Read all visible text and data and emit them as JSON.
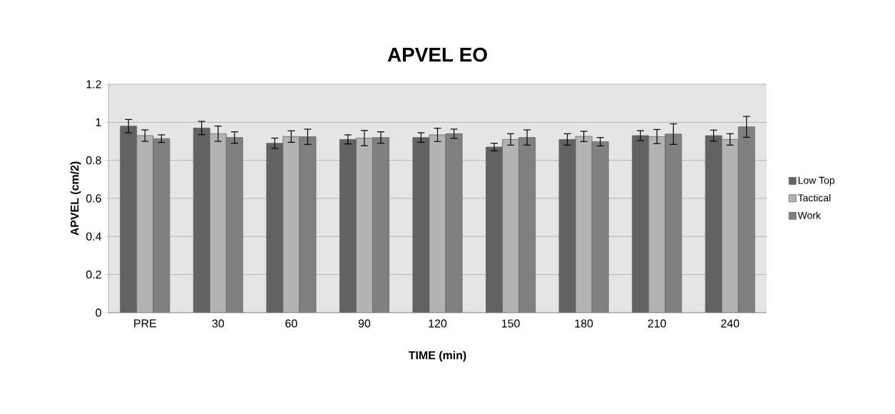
{
  "chart_data": {
    "type": "bar",
    "title": "APVEL EO",
    "xlabel": "TIME (min)",
    "ylabel": "APVEL (cm/2)",
    "categories": [
      "PRE",
      "30",
      "60",
      "90",
      "120",
      "150",
      "180",
      "210",
      "240"
    ],
    "series": [
      {
        "name": "Low Top",
        "color": "#626262",
        "values": [
          0.98,
          0.97,
          0.89,
          0.91,
          0.92,
          0.87,
          0.91,
          0.93,
          0.93
        ],
        "errors": [
          0.035,
          0.035,
          0.027,
          0.024,
          0.025,
          0.02,
          0.03,
          0.026,
          0.029
        ]
      },
      {
        "name": "Tactical",
        "color": "#b3b3b3",
        "values": [
          0.93,
          0.94,
          0.925,
          0.917,
          0.934,
          0.91,
          0.926,
          0.925,
          0.91
        ],
        "errors": [
          0.03,
          0.04,
          0.03,
          0.04,
          0.035,
          0.03,
          0.027,
          0.037,
          0.03
        ]
      },
      {
        "name": "Work",
        "color": "#808080",
        "values": [
          0.914,
          0.92,
          0.924,
          0.92,
          0.94,
          0.92,
          0.898,
          0.938,
          0.976
        ],
        "errors": [
          0.02,
          0.03,
          0.04,
          0.03,
          0.024,
          0.04,
          0.022,
          0.054,
          0.055
        ]
      }
    ],
    "ylim": [
      0,
      1.2
    ],
    "yticks": [
      0,
      0.2,
      0.4,
      0.6,
      0.8,
      1,
      1.2
    ],
    "grid": "y",
    "legend": "right"
  }
}
